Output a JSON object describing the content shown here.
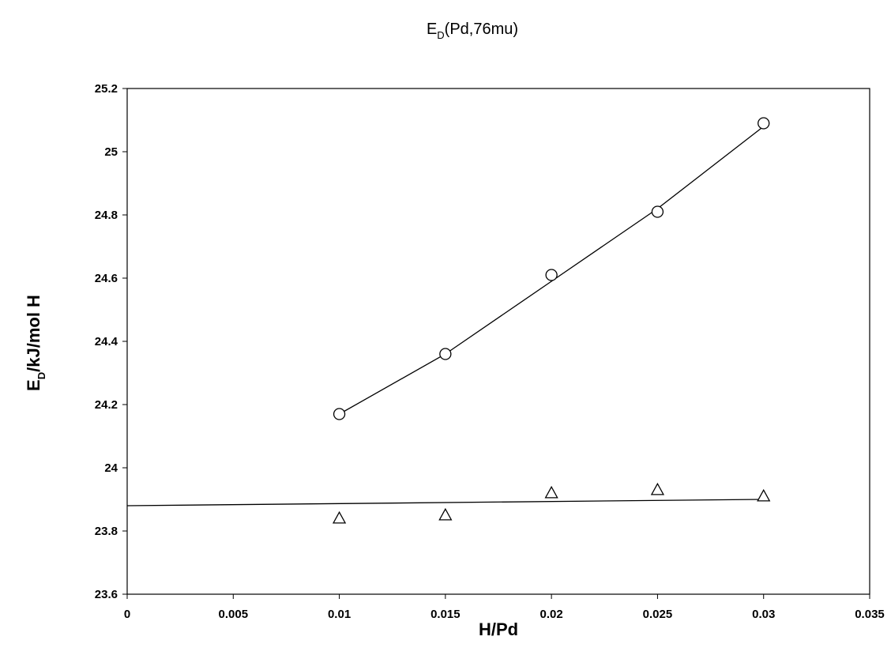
{
  "chart_data": {
    "type": "scatter",
    "title": {
      "main": "E",
      "sub": "D",
      "rest": "(Pd,76mu)"
    },
    "xlabel": "H/Pd",
    "ylabel": {
      "main": "E",
      "sub": "D",
      "rest": "/kJ/mol H"
    },
    "xlim": [
      0,
      0.035
    ],
    "ylim": [
      23.6,
      25.2
    ],
    "x_ticks": [
      0,
      0.005,
      0.01,
      0.015,
      0.02,
      0.025,
      0.03,
      0.035
    ],
    "x_tick_labels": [
      "0",
      "0.005",
      "0.01",
      "0.015",
      "0.02",
      "0.025",
      "0.03",
      "0.035"
    ],
    "y_ticks": [
      23.6,
      23.8,
      24.0,
      24.2,
      24.4,
      24.6,
      24.8,
      25.0,
      25.2
    ],
    "y_tick_labels": [
      "23.6",
      "23.8",
      "24",
      "24.2",
      "24.4",
      "24.6",
      "24.8",
      "25",
      "25.2"
    ],
    "grid": false,
    "legend": "none",
    "series": [
      {
        "marker": "circle",
        "x": [
          0.01,
          0.015,
          0.02,
          0.025,
          0.03
        ],
        "y": [
          24.17,
          24.36,
          24.61,
          24.81,
          25.09
        ],
        "fit_line": {
          "x": [
            0.01,
            0.015,
            0.02,
            0.025,
            0.03
          ],
          "y": [
            24.17,
            24.36,
            24.59,
            24.82,
            25.08
          ]
        }
      },
      {
        "marker": "triangle",
        "x": [
          0.01,
          0.015,
          0.02,
          0.025,
          0.03
        ],
        "y": [
          23.84,
          23.85,
          23.92,
          23.93,
          23.91
        ],
        "fit_line": {
          "x": [
            0,
            0.03
          ],
          "y": [
            23.88,
            23.9
          ]
        }
      }
    ]
  }
}
